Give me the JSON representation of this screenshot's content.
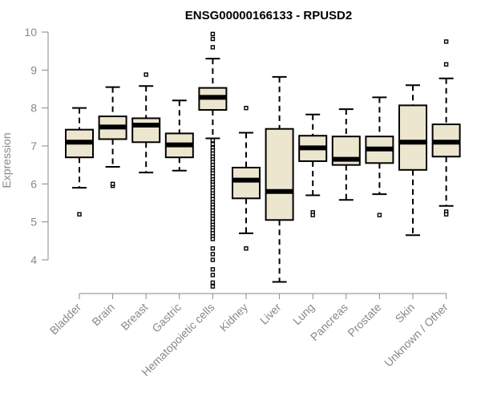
{
  "chart_data": {
    "type": "boxplot",
    "title": "ENSG00000166133 - RPUSD2",
    "xlabel": "",
    "ylabel": "Expression",
    "ylim": [
      3.2,
      10.3
    ],
    "yticks": [
      4,
      5,
      6,
      7,
      8,
      9,
      10
    ],
    "box_fill": "#ede6cf",
    "categories": [
      "Bladder",
      "Brain",
      "Breast",
      "Gastric",
      "Hematopoietic cells",
      "Kidney",
      "Liver",
      "Lung",
      "Pancreas",
      "Prostate",
      "Skin",
      "Unknown / Other"
    ],
    "series": [
      {
        "name": "Bladder",
        "whisker_low": 5.9,
        "q1": 6.7,
        "median": 7.1,
        "q3": 7.43,
        "whisker_high": 8.0,
        "outliers": [
          5.2
        ]
      },
      {
        "name": "Brain",
        "whisker_low": 6.45,
        "q1": 7.18,
        "median": 7.5,
        "q3": 7.78,
        "whisker_high": 8.55,
        "outliers": [
          5.95,
          6.0
        ]
      },
      {
        "name": "Breast",
        "whisker_low": 6.3,
        "q1": 7.1,
        "median": 7.55,
        "q3": 7.73,
        "whisker_high": 8.58,
        "outliers": [
          8.88
        ]
      },
      {
        "name": "Gastric",
        "whisker_low": 6.35,
        "q1": 6.7,
        "median": 7.03,
        "q3": 7.33,
        "whisker_high": 8.2,
        "outliers": []
      },
      {
        "name": "Hematopoietic cells",
        "whisker_low": 7.2,
        "q1": 7.95,
        "median": 8.28,
        "q3": 8.53,
        "whisker_high": 9.3,
        "outliers": [
          9.95,
          9.82,
          9.6,
          7.15,
          7.05,
          6.95,
          6.88,
          6.8,
          6.72,
          6.65,
          6.58,
          6.5,
          6.42,
          6.35,
          6.28,
          6.2,
          6.12,
          6.05,
          5.98,
          5.9,
          5.83,
          5.75,
          5.68,
          5.6,
          5.52,
          5.45,
          5.38,
          5.3,
          5.22,
          5.15,
          5.08,
          5.0,
          4.92,
          4.85,
          4.78,
          4.7,
          4.62,
          4.55,
          4.3,
          4.15,
          4.0,
          3.75,
          3.6,
          3.4,
          3.3
        ]
      },
      {
        "name": "Kidney",
        "whisker_low": 4.7,
        "q1": 5.62,
        "median": 6.1,
        "q3": 6.43,
        "whisker_high": 7.35,
        "outliers": [
          8.0,
          4.3
        ]
      },
      {
        "name": "Liver",
        "whisker_low": 3.42,
        "q1": 5.05,
        "median": 5.8,
        "q3": 7.45,
        "whisker_high": 8.82,
        "outliers": []
      },
      {
        "name": "Lung",
        "whisker_low": 5.7,
        "q1": 6.6,
        "median": 6.95,
        "q3": 7.27,
        "whisker_high": 7.83,
        "outliers": [
          5.25,
          5.18
        ]
      },
      {
        "name": "Pancreas",
        "whisker_low": 5.58,
        "q1": 6.5,
        "median": 6.65,
        "q3": 7.25,
        "whisker_high": 7.97,
        "outliers": []
      },
      {
        "name": "Prostate",
        "whisker_low": 5.73,
        "q1": 6.55,
        "median": 6.92,
        "q3": 7.25,
        "whisker_high": 8.28,
        "outliers": [
          5.18
        ]
      },
      {
        "name": "Skin",
        "whisker_low": 4.65,
        "q1": 6.37,
        "median": 7.1,
        "q3": 8.07,
        "whisker_high": 8.6,
        "outliers": []
      },
      {
        "name": "Unknown / Other",
        "whisker_low": 5.42,
        "q1": 6.72,
        "median": 7.1,
        "q3": 7.57,
        "whisker_high": 8.78,
        "outliers": [
          9.75,
          9.15,
          5.27,
          5.2
        ]
      }
    ]
  }
}
